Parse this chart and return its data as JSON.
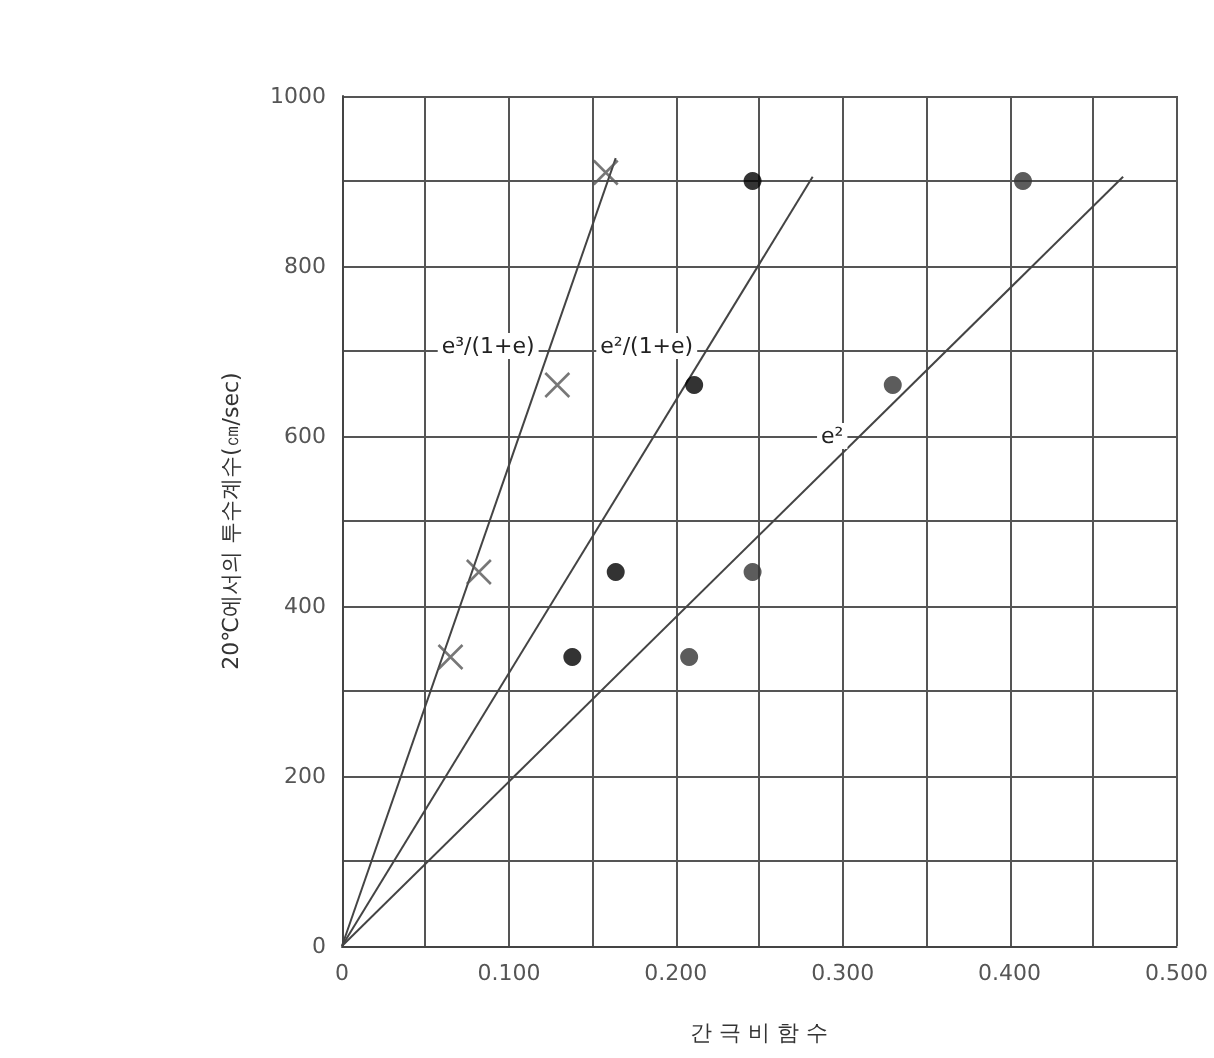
{
  "chart_data": {
    "type": "scatter",
    "xlabel": "간 극 비 함 수",
    "ylabel": "20℃에서의 투수계수(㎝/sec)",
    "xlim": [
      0,
      0.5
    ],
    "ylim": [
      0,
      1000
    ],
    "xticks": [
      0,
      {
        "value": 0.05,
        "label": null
      },
      {
        "value": 0.1,
        "label": "0.100"
      },
      {
        "value": 0.15,
        "label": null
      },
      {
        "value": 0.2,
        "label": "0.200"
      },
      {
        "value": 0.25,
        "label": null
      },
      {
        "value": 0.3,
        "label": "0.300"
      },
      {
        "value": 0.35,
        "label": null
      },
      {
        "value": 0.4,
        "label": "0.400"
      },
      {
        "value": 0.45,
        "label": null
      },
      {
        "value": 0.5,
        "label": "0.500"
      }
    ],
    "yticks": [
      0,
      {
        "value": 100,
        "label": null
      },
      200,
      {
        "value": 300,
        "label": null
      },
      400,
      {
        "value": 500,
        "label": null
      },
      600,
      {
        "value": 700,
        "label": null
      },
      800,
      {
        "value": 900,
        "label": null
      },
      1000
    ],
    "grid": true,
    "series": [
      {
        "marker": "cross",
        "color": "#555555",
        "x": [
          0.065,
          0.082,
          0.129,
          0.158
        ],
        "values": [
          340,
          440,
          660,
          910
        ]
      },
      {
        "marker": "circle",
        "color": "#000000",
        "x": [
          0.138,
          0.164,
          0.211,
          0.246
        ],
        "values": [
          340,
          440,
          660,
          900
        ]
      },
      {
        "marker": "circle",
        "color": "#333333",
        "x": [
          0.208,
          0.246,
          0.33,
          0.408
        ],
        "values": [
          340,
          440,
          660,
          900
        ]
      },
      {
        "type": "line",
        "marker": "none",
        "color": "#444444",
        "x": [
          0,
          0.164
        ],
        "values": [
          0,
          927
        ]
      },
      {
        "type": "line",
        "marker": "none",
        "color": "#444444",
        "x": [
          0,
          0.282
        ],
        "values": [
          0,
          905
        ]
      },
      {
        "type": "line",
        "marker": "none",
        "color": "#444444",
        "x": [
          0,
          0.468
        ],
        "values": [
          0,
          905
        ]
      }
    ],
    "annotations": [
      {
        "text": "e³/(1+e)",
        "x": 0.125,
        "y": 706
      },
      {
        "text": "e²/(1+e)",
        "x": 0.22,
        "y": 706
      },
      {
        "text": "e²",
        "x": 0.31,
        "y": 600
      }
    ]
  }
}
